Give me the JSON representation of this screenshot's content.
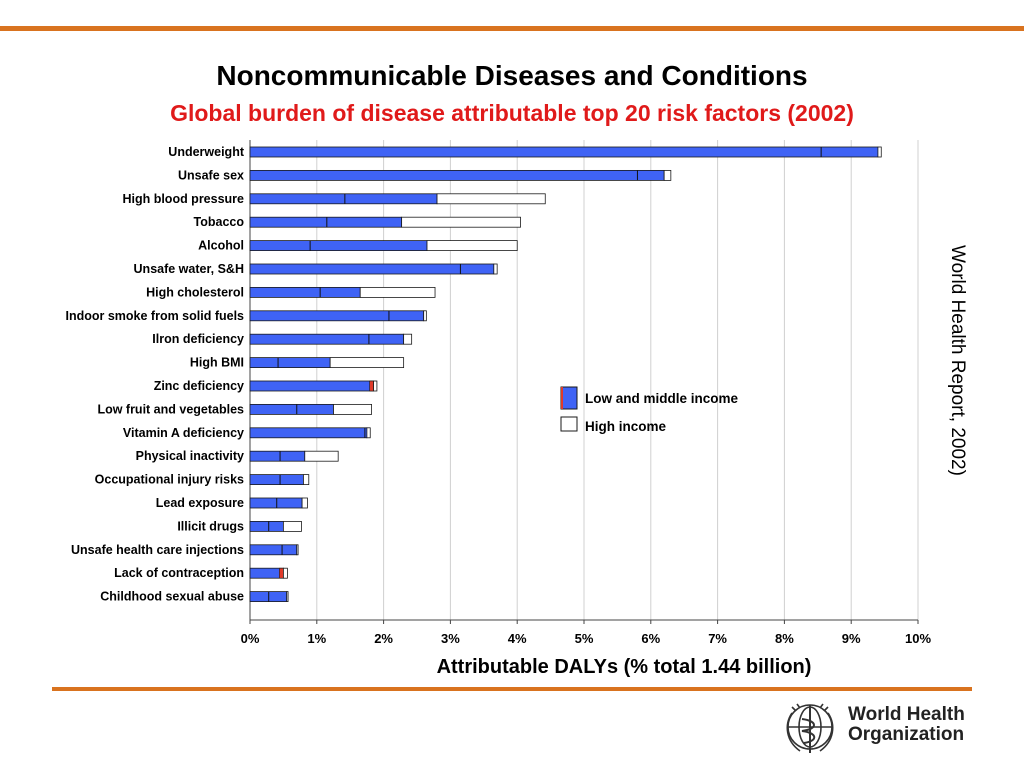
{
  "slide": {
    "title": "Noncommunicable Diseases and Conditions",
    "subtitle": "Global burden of disease attributable top 20 risk factors (2002)",
    "side_caption": "World Health Report, 2002)",
    "logo_text": [
      "World Health",
      "Organization"
    ]
  },
  "colors": {
    "low_middle": "#3f63f5",
    "high": "#ffffff",
    "accent_red": "#e03a2a",
    "rule": "#d9731f",
    "title_red": "#e01a1a"
  },
  "chart_data": {
    "type": "bar",
    "orientation": "horizontal",
    "stacked": true,
    "xlabel": "Attributable DALYs (% total 1.44 billion)",
    "ylabel": "",
    "xlim": [
      0,
      10
    ],
    "xticks": [
      "0%",
      "1%",
      "2%",
      "3%",
      "4%",
      "5%",
      "6%",
      "7%",
      "8%",
      "9%",
      "10%"
    ],
    "grid": "vertical",
    "legend": {
      "position": "right",
      "entries": [
        "Low and middle income",
        "High income"
      ]
    },
    "categories": [
      "Underweight",
      "Unsafe sex",
      "High blood pressure",
      "Tobacco",
      "Alcohol",
      "Unsafe water, S&H",
      "High cholesterol",
      "Indoor smoke from solid fuels",
      "Ilron deficiency",
      "High BMI",
      "Zinc deficiency",
      "Low fruit and vegetables",
      "Vitamin A deficiency",
      "Physical inactivity",
      "Occupational injury  risks",
      "Lead exposure",
      "Illicit drugs",
      "Unsafe health care injections",
      "Lack of contraception",
      "Childhood sexual abuse"
    ],
    "series": [
      {
        "name": "Low and middle income",
        "values": [
          9.4,
          6.2,
          2.8,
          2.27,
          2.65,
          3.65,
          1.65,
          2.6,
          2.3,
          1.2,
          1.85,
          1.25,
          1.75,
          0.82,
          0.8,
          0.78,
          0.5,
          0.7,
          0.5,
          0.55
        ],
        "inner_dividers": [
          8.55,
          5.8,
          1.42,
          1.15,
          0.9,
          3.15,
          1.05,
          2.08,
          1.78,
          0.42,
          1.8,
          0.7,
          1.72,
          0.45,
          0.45,
          0.4,
          0.28,
          0.48,
          0.48,
          0.28
        ]
      },
      {
        "name": "High income",
        "values": [
          0.05,
          0.1,
          1.62,
          1.78,
          1.35,
          0.05,
          1.12,
          0.04,
          0.12,
          1.1,
          0.05,
          0.57,
          0.05,
          0.5,
          0.08,
          0.08,
          0.27,
          0.02,
          0.06,
          0.02
        ]
      }
    ],
    "red_markers": [
      10,
      18
    ]
  }
}
